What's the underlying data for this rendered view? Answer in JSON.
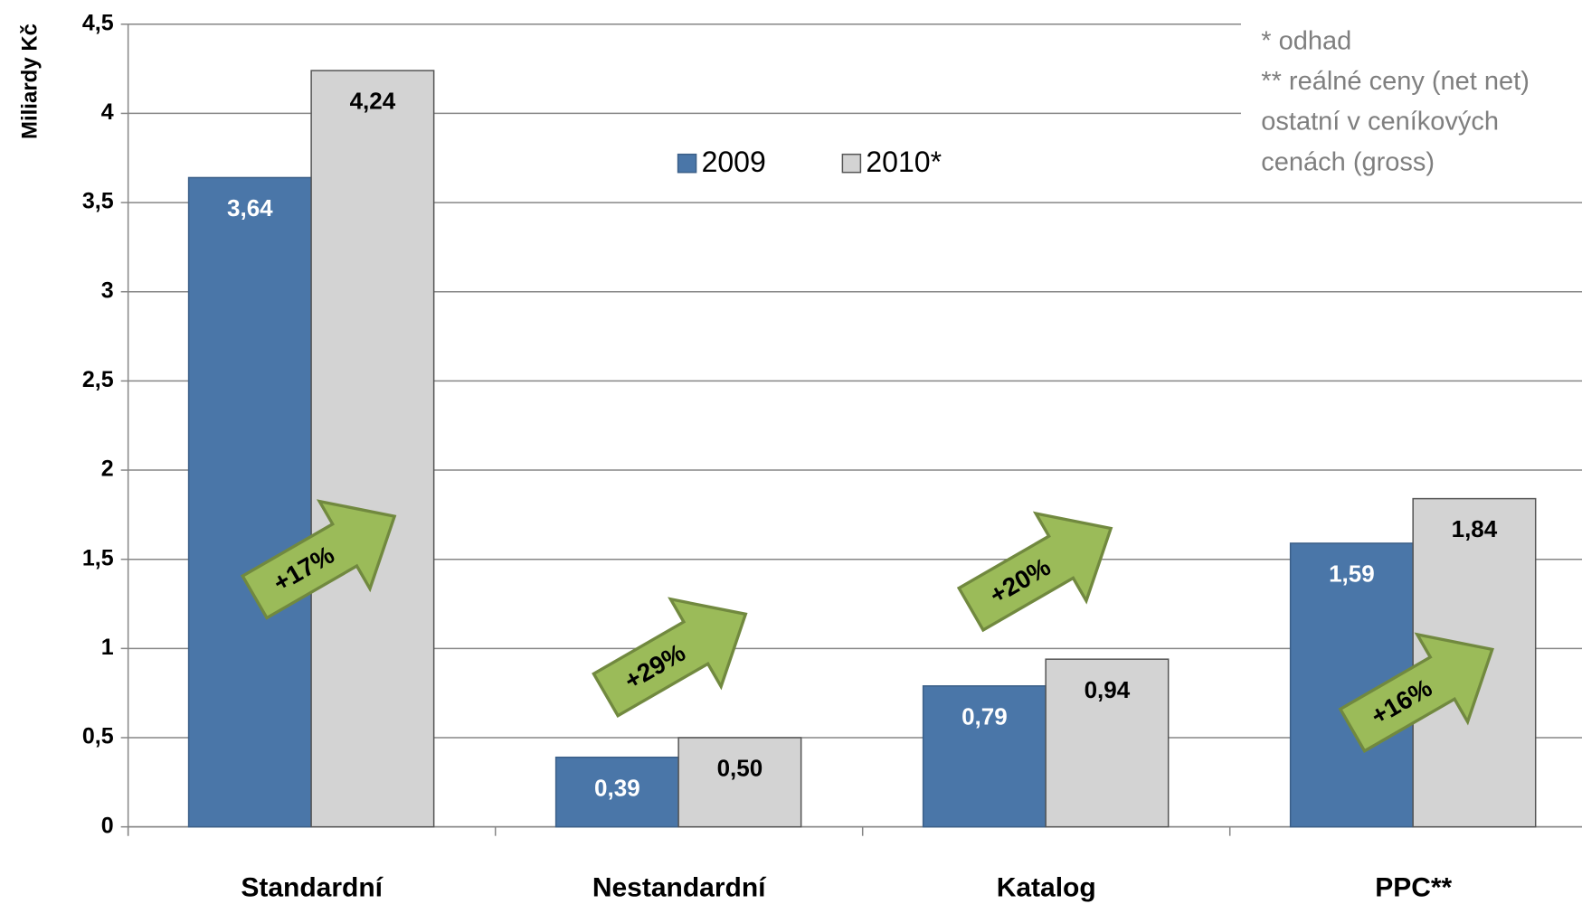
{
  "chart_data": {
    "type": "bar",
    "y_label": "Miliardy Kč",
    "categories": [
      "Standardní",
      "Nestandardní",
      "Katalog",
      "PPC**"
    ],
    "series": [
      {
        "name": "2009",
        "color": "#4a76a8",
        "values": [
          3.64,
          0.39,
          0.79,
          1.59
        ],
        "value_labels": [
          "3,64",
          "0,39",
          "0,79",
          "1,59"
        ]
      },
      {
        "name": "2010*",
        "color": "#d3d3d3",
        "values": [
          4.24,
          0.5,
          0.94,
          1.84
        ],
        "value_labels": [
          "4,24",
          "0,50",
          "0,94",
          "1,84"
        ]
      }
    ],
    "ylim": [
      0,
      4.5
    ],
    "yticks": [
      0,
      {
        "value": 0.5,
        "label": "0,5"
      },
      1,
      {
        "value": 1.5,
        "label": "1,5"
      },
      2,
      {
        "value": 2.5,
        "label": "2,5"
      },
      3,
      {
        "value": 3.5,
        "label": "3,5"
      },
      4,
      {
        "value": 4.5,
        "label": "4,5"
      }
    ],
    "grid": true,
    "annotations": [
      "+17%",
      "+29%",
      "+20%",
      "+16%"
    ],
    "notes": [
      "* odhad",
      "** reálné ceny (net net)",
      "ostatní v ceníkových",
      "cenách (gross)"
    ]
  }
}
